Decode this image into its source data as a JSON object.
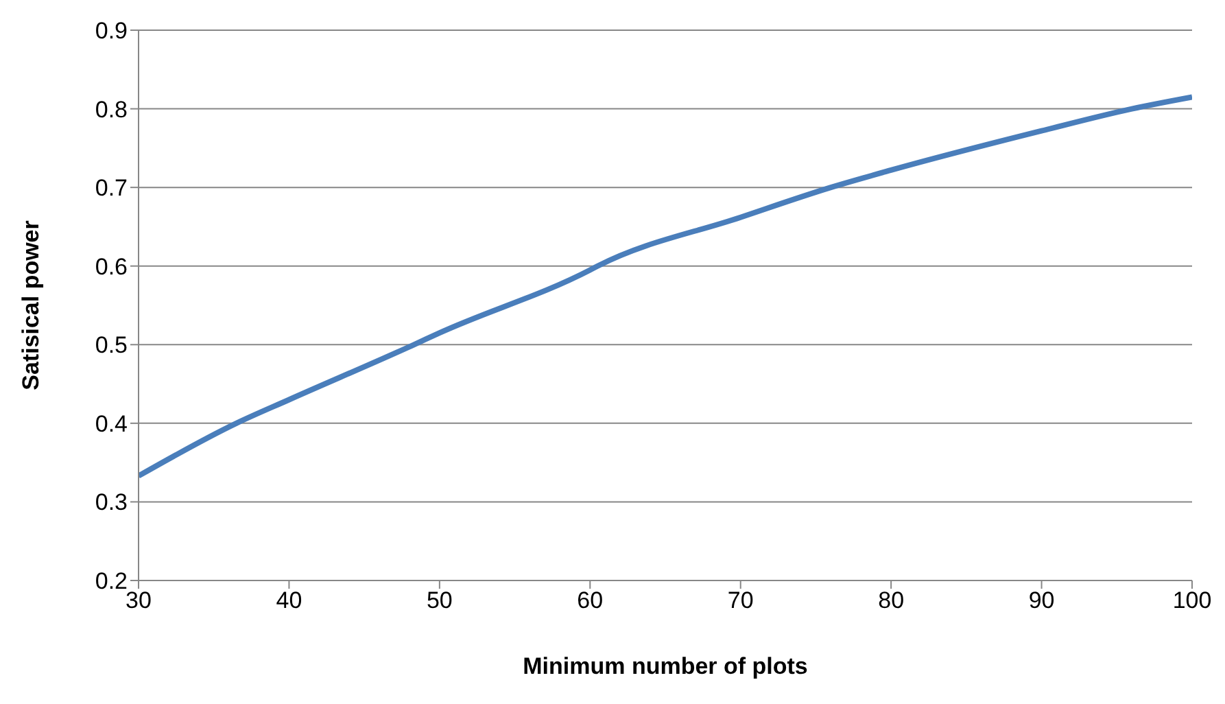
{
  "chart_data": {
    "type": "line",
    "xlabel": "Minimum number of plots",
    "ylabel": "Satisical power",
    "x": [
      30,
      36.5,
      40,
      48.3,
      50,
      60,
      60.5,
      70,
      76,
      80,
      90,
      96,
      100
    ],
    "series": [
      {
        "color": "#4a7ebb",
        "values": [
          0.333,
          0.4,
          0.43,
          0.5,
          0.515,
          0.595,
          0.6,
          0.662,
          0.7,
          0.722,
          0.772,
          0.8,
          0.815
        ]
      }
    ],
    "xlim": [
      30,
      100
    ],
    "xticks": [
      30,
      40,
      50,
      60,
      70,
      80,
      90,
      100
    ],
    "ylim": [
      0.2,
      0.9
    ],
    "yticks": [
      0.2,
      0.3,
      0.4,
      0.5,
      0.6,
      0.7,
      0.8,
      0.9
    ],
    "grid": "y",
    "marker": "none",
    "line_style": "solid",
    "legend": false
  }
}
